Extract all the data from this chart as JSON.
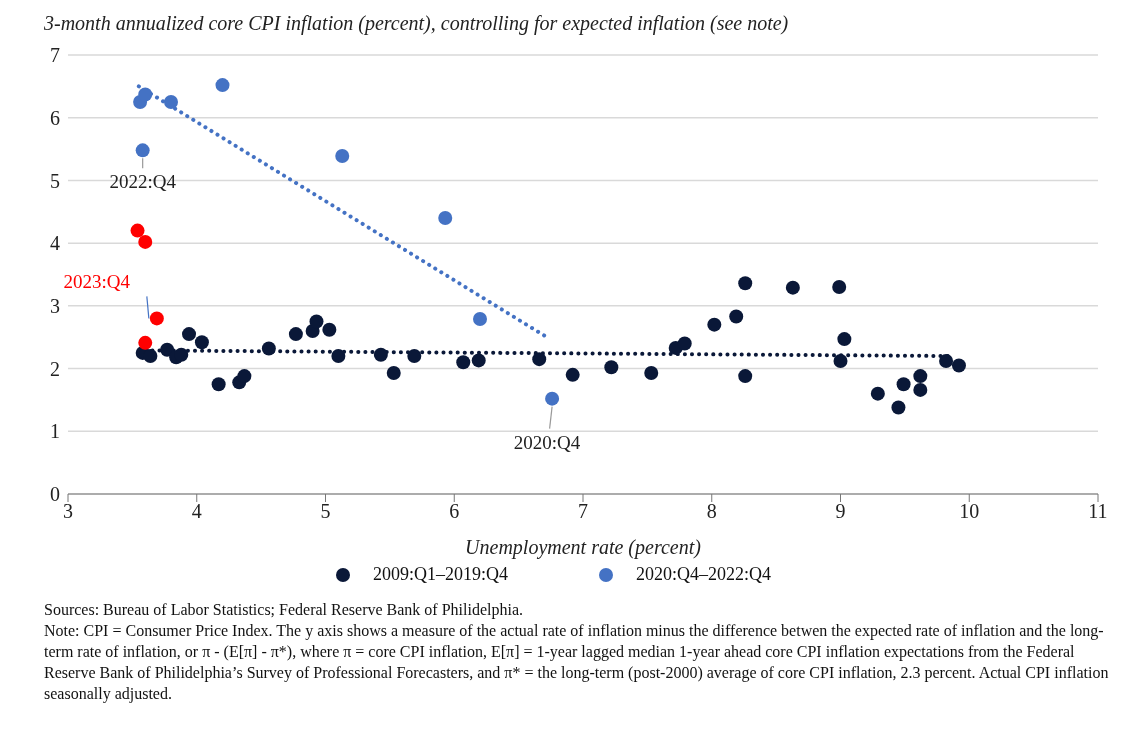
{
  "chart_data": {
    "type": "scatter",
    "ylabel": "3-month annualized core CPI inflation (percent), controlling for expected inflation (see note)",
    "xlabel": "Unemployment rate (percent)",
    "xlim": [
      3,
      11
    ],
    "xticks": [
      3,
      4,
      5,
      6,
      7,
      8,
      9,
      10,
      11
    ],
    "ylim": [
      0,
      7
    ],
    "yticks": [
      0,
      1,
      2,
      3,
      4,
      5,
      6,
      7
    ],
    "grid": "y",
    "legend": "bottom",
    "marker": "circle",
    "series": [
      {
        "name": "2009:Q1–2019:Q4",
        "color": "#0a1838",
        "x": [
          3.58,
          3.64,
          3.77,
          3.84,
          3.88,
          3.94,
          4.04,
          4.17,
          4.33,
          4.37,
          4.56,
          4.77,
          4.9,
          4.93,
          5.03,
          5.1,
          5.43,
          5.53,
          5.69,
          6.07,
          6.19,
          6.66,
          6.92,
          7.22,
          7.53,
          7.72,
          7.79,
          8.02,
          8.19,
          8.26,
          8.26,
          8.63,
          8.99,
          9.03,
          9.0,
          9.29,
          9.45,
          9.49,
          9.62,
          9.62,
          9.82,
          9.92
        ],
        "values": [
          2.25,
          2.2,
          2.3,
          2.18,
          2.22,
          2.55,
          2.42,
          1.75,
          1.78,
          1.88,
          2.32,
          2.55,
          2.6,
          2.75,
          2.62,
          2.2,
          2.22,
          1.93,
          2.2,
          2.1,
          2.13,
          2.15,
          1.9,
          2.02,
          1.93,
          2.33,
          2.4,
          2.7,
          2.83,
          3.36,
          1.88,
          3.29,
          3.3,
          2.47,
          2.12,
          1.6,
          1.38,
          1.75,
          1.88,
          1.66,
          2.12,
          2.05
        ]
      },
      {
        "name": "2020:Q4–2022:Q4",
        "color": "#4472c4",
        "x": [
          3.56,
          3.6,
          3.58,
          3.8,
          4.2,
          5.13,
          5.93,
          6.2,
          6.76
        ],
        "values": [
          6.25,
          6.37,
          5.48,
          6.25,
          6.52,
          5.39,
          4.4,
          2.79,
          1.52
        ]
      },
      {
        "color": "#ff0000",
        "x": [
          3.54,
          3.6,
          3.69,
          3.6
        ],
        "values": [
          4.2,
          4.02,
          2.8,
          2.41
        ]
      },
      {
        "type": "line",
        "color": "#4472c4",
        "line_style": "dotted",
        "marker": "none",
        "x": [
          3.55,
          6.72
        ],
        "values": [
          6.5,
          2.5
        ]
      },
      {
        "type": "line",
        "color": "#0a1838",
        "line_style": "dotted",
        "marker": "none",
        "x": [
          3.6,
          9.85
        ],
        "values": [
          2.29,
          2.2
        ]
      }
    ],
    "annotations": [
      {
        "text": "2022:Q4",
        "x": 3.58,
        "y": 5.48
      },
      {
        "text": "2023:Q4",
        "x": 3.69,
        "y": 2.8
      },
      {
        "text": "2020:Q4",
        "x": 6.76,
        "y": 1.52
      },
      "Sources: Bureau of Labor Statistics; Federal Reserve Bank of Philidelphia.",
      "Note: CPI = Consumer Price Index. The y axis shows a measure of the actual rate of inflation minus the difference betwen the expected rate of inflation and the long-term rate of inflation, or π - (E[π] - π*),  where π = core CPI inflation, E[π] = 1-year lagged median 1-year ahead core CPI inflation expectations from the Federal Reserve Bank of Philidelphia’s Survey of Professional Forecasters, and π* = the long-term (post-2000) average of core CPI inflation, 2.3 percent. Actual CPI inflation  seasonally adjusted."
    ]
  }
}
